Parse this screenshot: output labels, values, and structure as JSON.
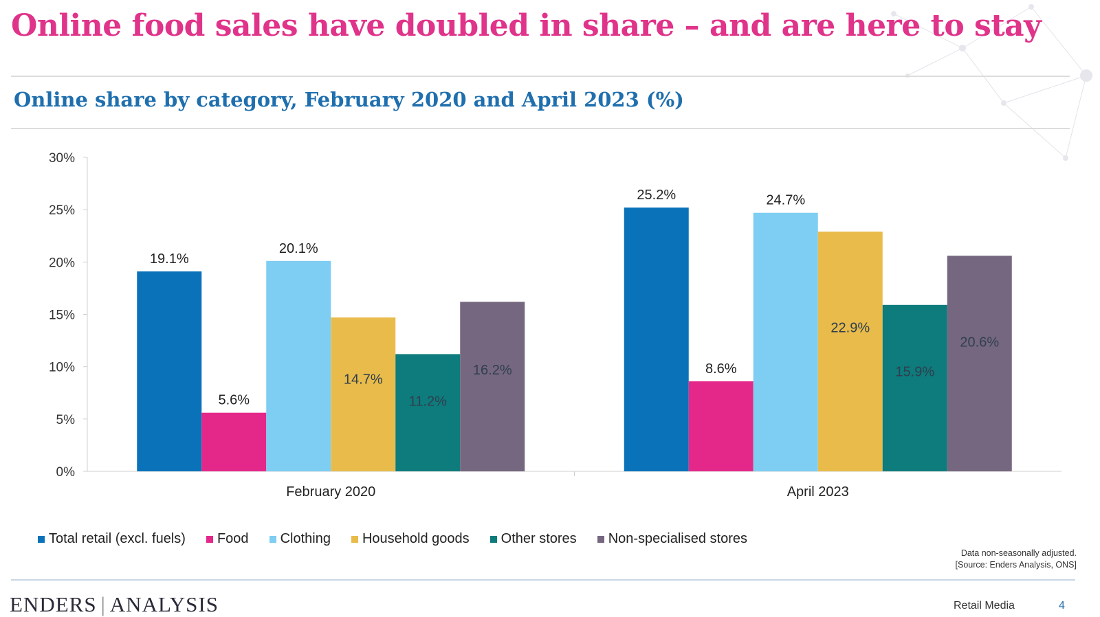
{
  "slide": {
    "title": "Online food sales have doubled in share – and are here to stay",
    "subtitle": "Online share by category, February 2020 and April 2023 (%)",
    "note_line1": "Data non-seasonally adjusted.",
    "note_line2": "[Source: Enders Analysis, ONS]",
    "logo_left": "ENDERS",
    "logo_right": "ANALYSIS",
    "footer_label": "Retail Media",
    "page_number": "4"
  },
  "colors": {
    "title": "#e0338a",
    "subtitle": "#1f6fae"
  },
  "chart_data": {
    "type": "bar",
    "title": "Online share by category, February 2020 and April 2023 (%)",
    "xlabel": "",
    "ylabel": "",
    "categories": [
      "February 2020",
      "April 2023"
    ],
    "ylim": [
      0,
      30
    ],
    "yticks": [
      0,
      5,
      10,
      15,
      20,
      25,
      30
    ],
    "ytick_labels": [
      "0%",
      "5%",
      "10%",
      "15%",
      "20%",
      "25%",
      "30%"
    ],
    "grid": false,
    "legend_position": "bottom-left",
    "series": [
      {
        "name": "Total retail (excl. fuels)",
        "color": "#0a72b9",
        "values": [
          19.1,
          25.2
        ],
        "labels": [
          "19.1%",
          "25.2%"
        ],
        "label_position": "above"
      },
      {
        "name": "Food",
        "color": "#e4288a",
        "values": [
          5.6,
          8.6
        ],
        "labels": [
          "5.6%",
          "8.6%"
        ],
        "label_position": "above"
      },
      {
        "name": "Clothing",
        "color": "#7ecdf2",
        "values": [
          20.1,
          24.7
        ],
        "labels": [
          "20.1%",
          "24.7%"
        ],
        "label_position": "above"
      },
      {
        "name": "Household goods",
        "color": "#e8bb4a",
        "values": [
          14.7,
          22.9
        ],
        "labels": [
          "14.7%",
          "22.9%"
        ],
        "label_position": "inside"
      },
      {
        "name": "Other stores",
        "color": "#0e7b7c",
        "values": [
          11.2,
          15.9
        ],
        "labels": [
          "11.2%",
          "15.9%"
        ],
        "label_position": "inside"
      },
      {
        "name": "Non-specialised stores",
        "color": "#75677f",
        "values": [
          16.2,
          20.6
        ],
        "labels": [
          "16.2%",
          "20.6%"
        ],
        "label_position": "inside"
      }
    ]
  }
}
